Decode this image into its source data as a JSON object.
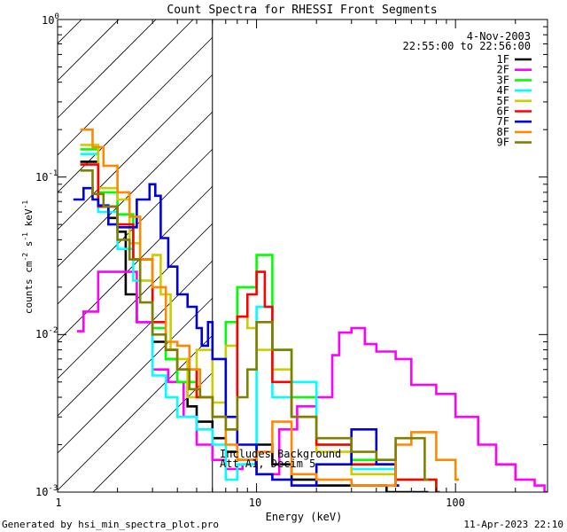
{
  "chart_data": {
    "type": "line",
    "title": "Count Spectra for RHESSI Front Segments",
    "xlabel": "Energy (keV)",
    "ylabel_parts": [
      "counts cm",
      "-2",
      " s",
      "-1",
      " keV",
      "-1"
    ],
    "x_scale": "log",
    "y_scale": "log",
    "xlim": [
      1,
      290
    ],
    "ylim": [
      0.001,
      1.0
    ],
    "x_ticks": [
      {
        "value": 1,
        "label": "1"
      },
      {
        "value": 10,
        "label": "10"
      },
      {
        "value": 100,
        "label": "100"
      }
    ],
    "y_ticks": [
      {
        "value": 0.001,
        "base": "10",
        "exp": "-3"
      },
      {
        "value": 0.01,
        "base": "10",
        "exp": "-2"
      },
      {
        "value": 0.1,
        "base": "10",
        "exp": "-1"
      },
      {
        "value": 1.0,
        "base": "10",
        "exp": "0"
      }
    ],
    "hatched_region_kev": [
      1,
      6
    ],
    "date": "4-Nov-2003",
    "time_range": "22:55:00 to 22:56:00",
    "annotation_lines": [
      "Includes Background",
      "Att A1, Decim 5"
    ],
    "series": [
      {
        "name": "1F",
        "color": "#000000",
        "x": [
          1.3,
          1.6,
          1.8,
          2.0,
          2.2,
          2.5,
          3.0,
          3.5,
          4.0,
          4.5,
          5.0,
          6.0,
          7.0,
          8.0,
          10.0,
          12.0,
          15.0,
          20.0,
          30.0,
          45.0,
          70.0
        ],
        "y": [
          0.125,
          0.065,
          0.055,
          0.045,
          0.018,
          0.012,
          0.009,
          0.007,
          0.005,
          0.0035,
          0.0028,
          0.0022,
          0.0018,
          0.0016,
          0.002,
          0.0015,
          0.0012,
          0.0011,
          0.0011,
          0.001,
          0.001
        ]
      },
      {
        "name": "2F",
        "color": "#ff00ff",
        "x": [
          1.25,
          1.35,
          1.6,
          2.0,
          2.5,
          3.0,
          3.6,
          4.3,
          5.0,
          6.0,
          7.0,
          8.5,
          10.0,
          13.0,
          16.0,
          20.0,
          24.0,
          26.0,
          30.0,
          35.0,
          40.0,
          50.0,
          60.0,
          80.0,
          100.0,
          130.0,
          160.0,
          200.0,
          250.0,
          280.0
        ],
        "y": [
          0.0105,
          0.014,
          0.025,
          0.025,
          0.012,
          0.006,
          0.005,
          0.003,
          0.002,
          0.0016,
          0.0014,
          0.0015,
          0.0013,
          0.0025,
          0.0035,
          0.004,
          0.0074,
          0.0103,
          0.011,
          0.0087,
          0.0078,
          0.007,
          0.0048,
          0.0042,
          0.003,
          0.002,
          0.0015,
          0.0012,
          0.0011,
          0.001
        ]
      },
      {
        "name": "3F",
        "color": "#00ff00",
        "x": [
          1.3,
          1.6,
          2.0,
          2.4,
          3.0,
          3.5,
          4.0,
          5.0,
          6.0,
          7.0,
          8.0,
          10.0,
          12.0,
          15.0,
          20.0,
          30.0,
          50.0,
          80.0
        ],
        "y": [
          0.15,
          0.08,
          0.058,
          0.03,
          0.011,
          0.007,
          0.005,
          0.004,
          0.003,
          0.012,
          0.02,
          0.032,
          0.008,
          0.004,
          0.002,
          0.0016,
          0.0012,
          0.001
        ]
      },
      {
        "name": "4F",
        "color": "#00ffff",
        "x": [
          1.3,
          1.6,
          2.0,
          2.4,
          3.0,
          3.5,
          4.0,
          5.0,
          6.0,
          7.0,
          8.0,
          10.0,
          12.0,
          15.0,
          20.0,
          30.0,
          50.0
        ],
        "y": [
          0.14,
          0.06,
          0.035,
          0.022,
          0.0055,
          0.004,
          0.003,
          0.0025,
          0.002,
          0.0012,
          0.0015,
          0.015,
          0.004,
          0.005,
          0.002,
          0.0014,
          0.0011
        ]
      },
      {
        "name": "5F",
        "color": "#cccc00",
        "x": [
          1.3,
          1.6,
          2.0,
          2.3,
          2.6,
          3.0,
          3.3,
          3.7,
          4.0,
          4.5,
          5.0,
          6.0,
          7.0,
          8.0,
          9.0,
          10.0,
          12.0,
          15.0,
          20.0,
          30.0,
          50.0
        ],
        "y": [
          0.16,
          0.085,
          0.072,
          0.038,
          0.022,
          0.032,
          0.018,
          0.008,
          0.007,
          0.004,
          0.008,
          0.0037,
          0.0085,
          0.013,
          0.011,
          0.008,
          0.006,
          0.003,
          0.0018,
          0.0013,
          0.0011
        ]
      },
      {
        "name": "6F",
        "color": "#ff0000",
        "x": [
          1.3,
          1.6,
          2.0,
          2.4,
          3.0,
          3.5,
          4.0,
          5.0,
          6.0,
          7.0,
          8.0,
          9.0,
          10.0,
          11.0,
          12.0,
          15.0,
          20.0,
          30.0,
          50.0,
          80.0
        ],
        "y": [
          0.12,
          0.065,
          0.05,
          0.03,
          0.012,
          0.008,
          0.006,
          0.004,
          0.003,
          0.0025,
          0.013,
          0.018,
          0.025,
          0.015,
          0.005,
          0.003,
          0.002,
          0.0015,
          0.0012,
          0.001
        ]
      },
      {
        "name": "7F",
        "color": "#0000dd",
        "x": [
          1.2,
          1.35,
          1.5,
          1.6,
          1.8,
          2.0,
          2.2,
          2.5,
          2.9,
          3.1,
          3.3,
          3.6,
          4.0,
          4.5,
          5.0,
          5.3,
          5.7,
          6.0,
          7.0,
          8.0,
          10.0,
          12.0,
          15.0,
          20.0,
          30.0,
          40.0,
          50.0
        ],
        "y": [
          0.072,
          0.085,
          0.072,
          0.066,
          0.05,
          0.048,
          0.048,
          0.072,
          0.09,
          0.076,
          0.041,
          0.027,
          0.018,
          0.015,
          0.011,
          0.0085,
          0.012,
          0.007,
          0.003,
          0.002,
          0.0013,
          0.0012,
          0.0011,
          0.0015,
          0.0025,
          0.0015,
          0.0011
        ]
      },
      {
        "name": "8F",
        "color": "#ff8800",
        "x": [
          1.3,
          1.5,
          1.7,
          2.0,
          2.3,
          2.6,
          3.0,
          3.5,
          4.0,
          4.6,
          5.2,
          6.0,
          7.0,
          8.0,
          10.0,
          12.0,
          15.0,
          20.0,
          30.0,
          40.0,
          50.0,
          60.0,
          80.0,
          100.0
        ],
        "y": [
          0.2,
          0.155,
          0.118,
          0.08,
          0.056,
          0.03,
          0.02,
          0.009,
          0.0085,
          0.006,
          0.004,
          0.003,
          0.002,
          0.0016,
          0.0018,
          0.0028,
          0.0013,
          0.0012,
          0.0011,
          0.0011,
          0.002,
          0.0024,
          0.0016,
          0.0012
        ]
      },
      {
        "name": "9F",
        "color": "#808000",
        "x": [
          1.3,
          1.5,
          1.7,
          2.0,
          2.3,
          2.6,
          3.0,
          3.5,
          4.0,
          4.6,
          5.2,
          6.0,
          7.0,
          8.0,
          9.0,
          10.0,
          12.0,
          15.0,
          20.0,
          30.0,
          40.0,
          50.0,
          70.0
        ],
        "y": [
          0.11,
          0.078,
          0.065,
          0.04,
          0.03,
          0.016,
          0.01,
          0.008,
          0.006,
          0.0045,
          0.004,
          0.003,
          0.0025,
          0.004,
          0.006,
          0.012,
          0.008,
          0.003,
          0.0022,
          0.0018,
          0.0016,
          0.0022,
          0.0012
        ]
      }
    ]
  },
  "footer": {
    "left": "Generated by hsi_min_spectra_plot.pro",
    "right": "11-Apr-2023 22:10"
  }
}
